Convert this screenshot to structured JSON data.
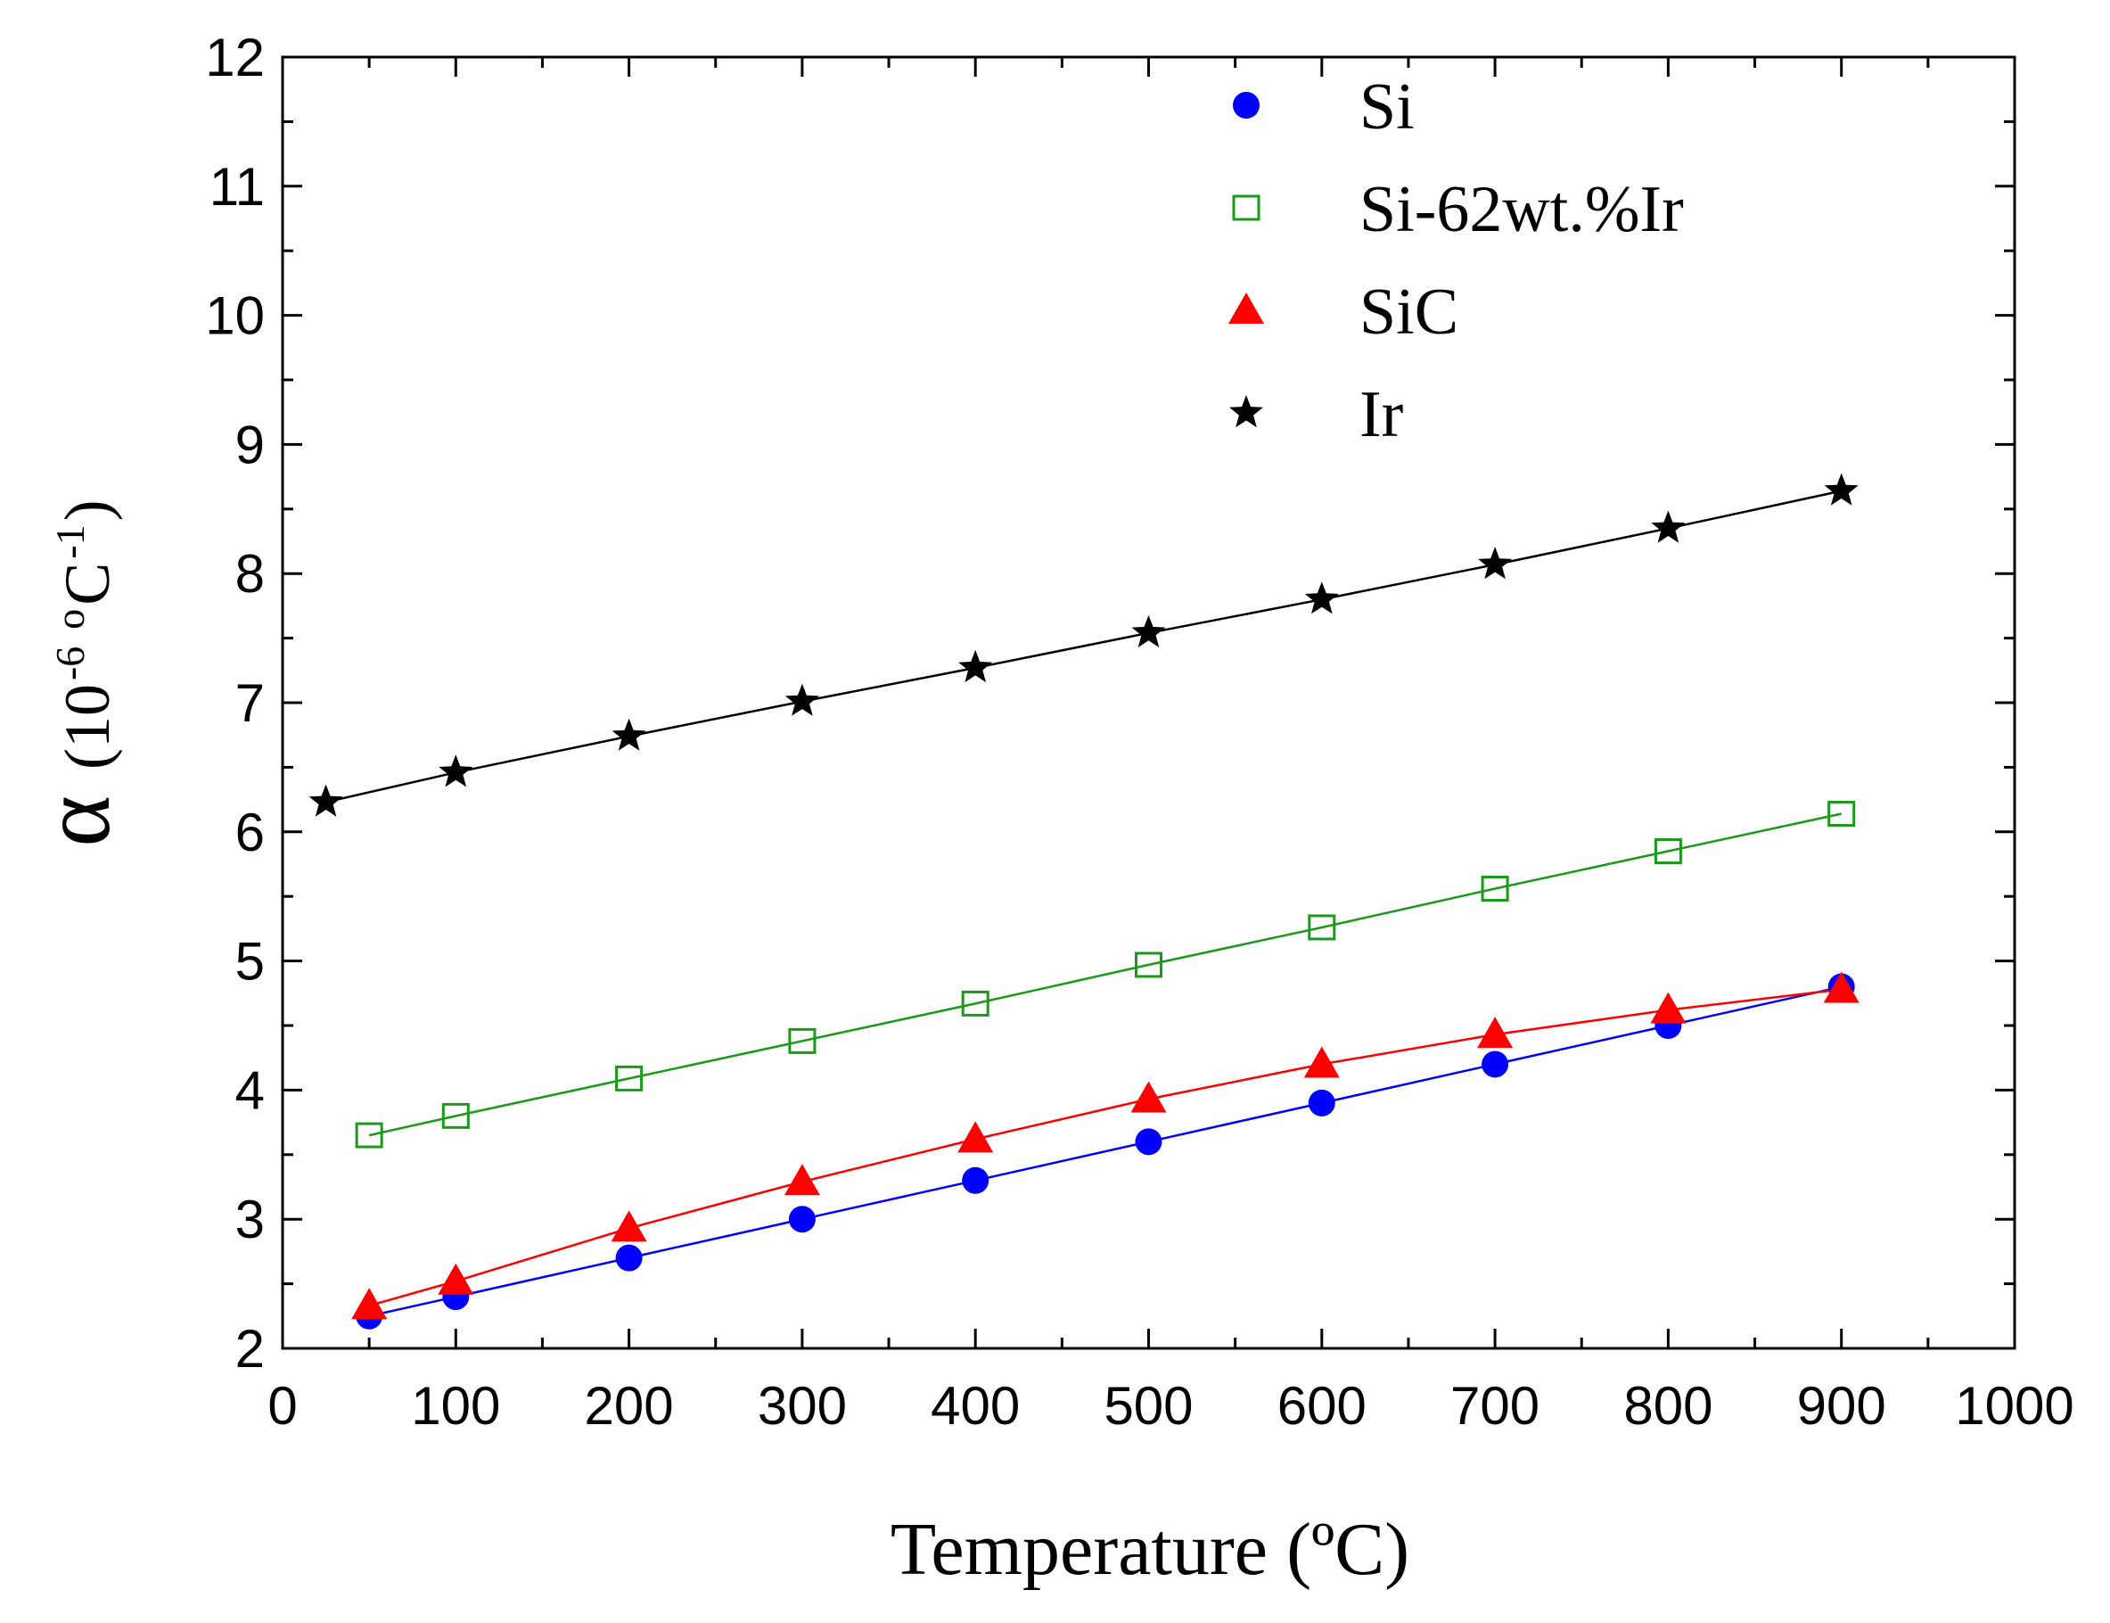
{
  "chart_data": {
    "type": "line",
    "title": "",
    "xlabel": "Temperature (ºC)",
    "ylabel": {
      "symbol": "α",
      "open": "(10",
      "exp1": "-6",
      "unit_o": "o",
      "unit_c": "C",
      "exp2": "-1",
      "close": ")"
    },
    "xlim": [
      0,
      1000
    ],
    "ylim": [
      2,
      12
    ],
    "x_ticks": [
      0,
      100,
      200,
      300,
      400,
      500,
      600,
      700,
      800,
      900,
      1000
    ],
    "y_ticks": [
      2,
      3,
      4,
      5,
      6,
      7,
      8,
      9,
      10,
      11,
      12
    ],
    "grid": false,
    "legend_position": "top-center",
    "series": [
      {
        "name": "Si",
        "marker": "filled-circle",
        "color": "#0000FF",
        "x": [
          50,
          100,
          200,
          300,
          400,
          500,
          600,
          700,
          800,
          900
        ],
        "y": [
          2.25,
          2.4,
          2.7,
          3.0,
          3.3,
          3.6,
          3.9,
          4.2,
          4.5,
          4.8
        ]
      },
      {
        "name": "Si-62wt.%Ir",
        "marker": "open-square",
        "color": "#1A9A1A",
        "x": [
          50,
          100,
          200,
          300,
          400,
          500,
          600,
          700,
          800,
          900
        ],
        "y": [
          3.65,
          3.8,
          4.09,
          4.38,
          4.67,
          4.97,
          5.26,
          5.56,
          5.85,
          6.14
        ]
      },
      {
        "name": "SiC",
        "marker": "filled-triangle",
        "color": "#FF0000",
        "x": [
          50,
          100,
          200,
          300,
          400,
          500,
          600,
          700,
          800,
          900
        ],
        "y": [
          2.33,
          2.52,
          2.93,
          3.29,
          3.62,
          3.93,
          4.2,
          4.43,
          4.62,
          4.78
        ]
      },
      {
        "name": "Ir",
        "marker": "filled-star",
        "color": "#000000",
        "x": [
          25,
          100,
          200,
          300,
          400,
          500,
          600,
          700,
          800,
          900
        ],
        "y": [
          6.23,
          6.46,
          6.74,
          7.01,
          7.27,
          7.54,
          7.8,
          8.07,
          8.35,
          8.64
        ]
      }
    ]
  }
}
